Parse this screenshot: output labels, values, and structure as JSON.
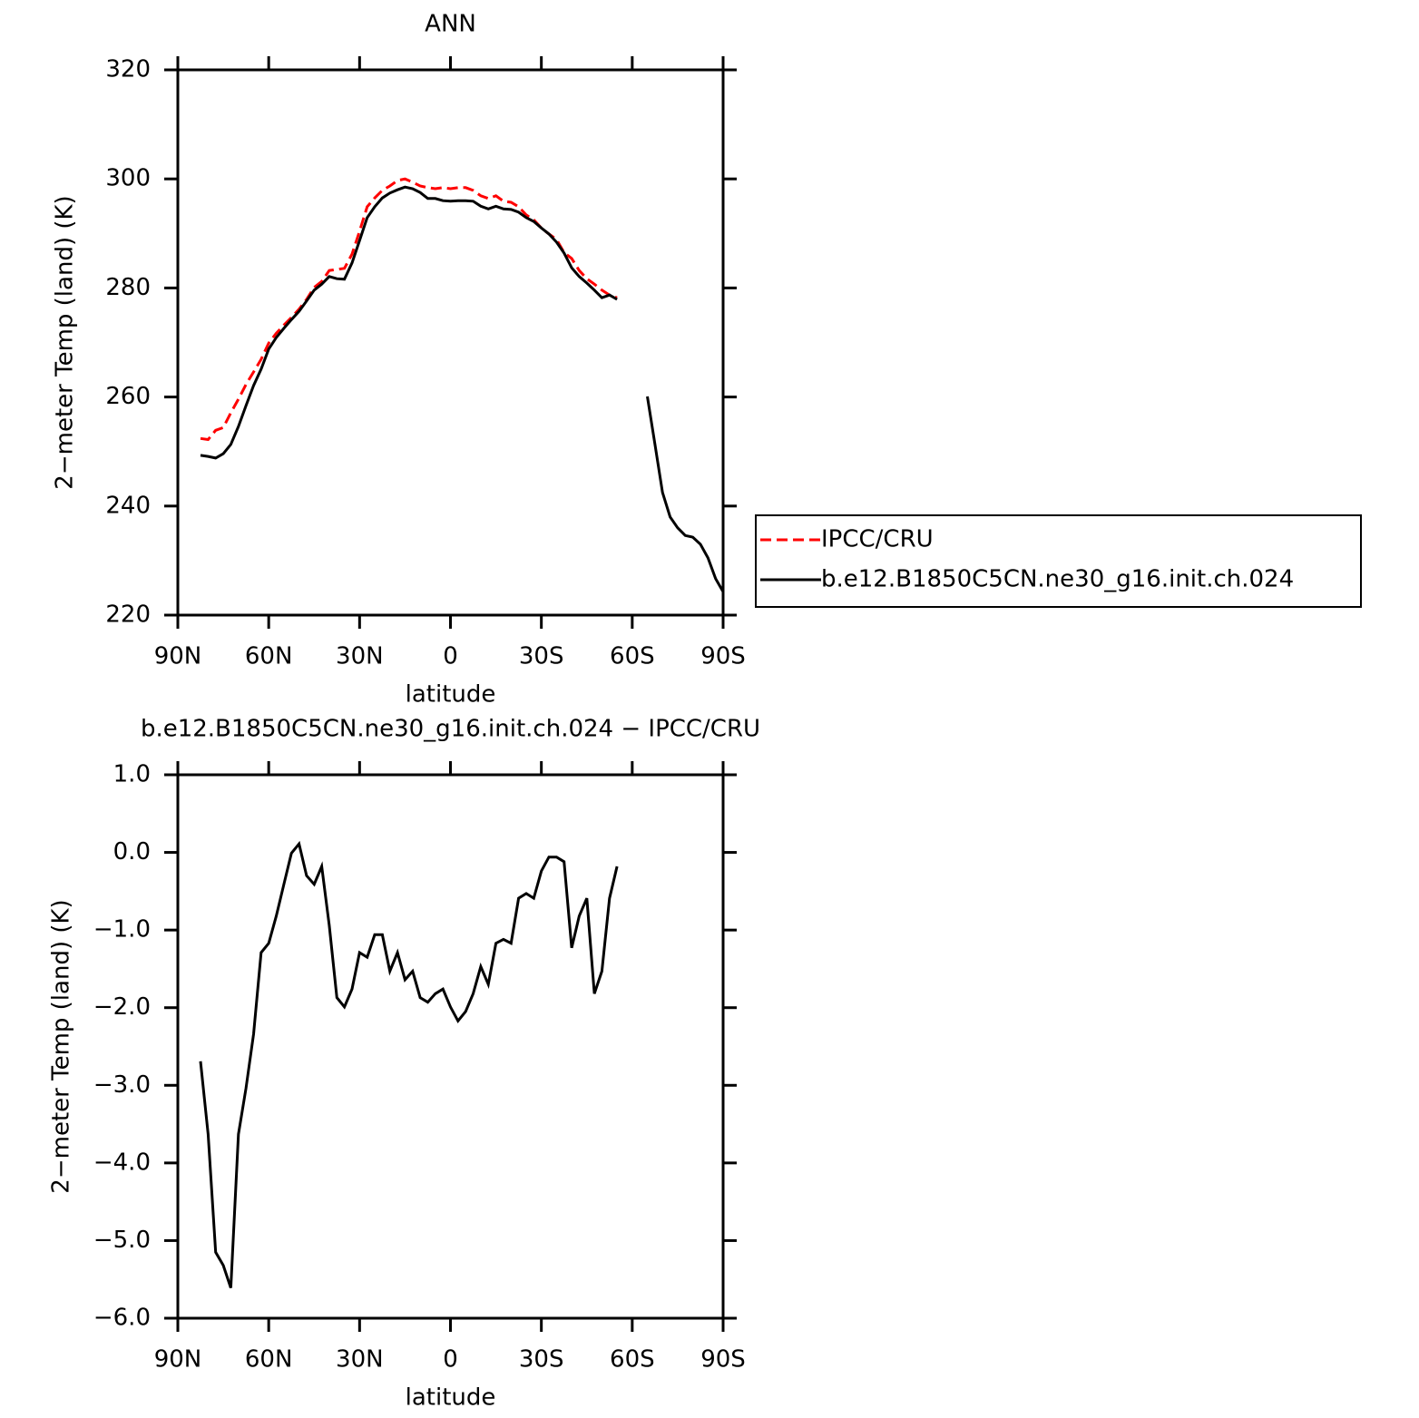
{
  "chart_data": [
    {
      "type": "line",
      "title": "ANN",
      "xlabel": "latitude",
      "ylabel": "2−meter Temp (land) (K)",
      "xlim": [
        90,
        -90
      ],
      "xticks": [
        {
          "value": 90,
          "label": "90N"
        },
        {
          "value": 60,
          "label": "60N"
        },
        {
          "value": 30,
          "label": "30N"
        },
        0,
        {
          "value": -30,
          "label": "30S"
        },
        {
          "value": -60,
          "label": "60S"
        },
        {
          "value": -90,
          "label": "90S"
        }
      ],
      "ylim": [
        220,
        320
      ],
      "yticks": [
        220,
        240,
        260,
        280,
        300,
        320
      ],
      "legend": "right",
      "x": [
        82.5,
        80,
        77.5,
        75,
        72.5,
        70,
        67.5,
        65,
        62.5,
        60,
        57.5,
        55,
        52.5,
        50,
        47.5,
        45,
        42.5,
        40,
        37.5,
        35,
        32.5,
        30,
        27.5,
        25,
        22.5,
        20,
        17.5,
        15,
        12.5,
        10,
        7.5,
        5,
        2.5,
        0,
        -2.5,
        -5,
        -7.5,
        -10,
        -12.5,
        -15,
        -17.5,
        -20,
        -22.5,
        -25,
        -27.5,
        -30,
        -32.5,
        -35,
        -37.5,
        -40,
        -42.5,
        -45,
        -47.5,
        -50,
        -52.5,
        -55,
        -57.5,
        -60,
        -62.5,
        -65,
        -67.5,
        -70,
        -72.5,
        -75,
        -77.5,
        -80,
        -82.5,
        -85,
        -87.5,
        -90
      ],
      "series": [
        {
          "name": "IPCC/CRU",
          "color": "#ff0000",
          "dash": true,
          "values": [
            252.4,
            252.2,
            253.9,
            254.4,
            257.1,
            259.6,
            262.3,
            264.6,
            266.9,
            269.9,
            271.7,
            273.2,
            274.6,
            276.1,
            277.9,
            280.1,
            281.2,
            283.2,
            283.4,
            283.6,
            286.2,
            290.4,
            294.9,
            296.5,
            297.9,
            298.7,
            299.7,
            300.0,
            299.4,
            298.7,
            298.4,
            298.2,
            298.4,
            298.2,
            298.4,
            298.4,
            297.9,
            296.9,
            296.4,
            296.9,
            295.9,
            295.7,
            294.9,
            293.4,
            292.5,
            291.0,
            289.9,
            288.9,
            286.5,
            285.4,
            283.2,
            281.7,
            280.7,
            279.6,
            278.7,
            278.2,
            null,
            null,
            null,
            null,
            null,
            null,
            null,
            null,
            null,
            null,
            null,
            null,
            null,
            null
          ]
        },
        {
          "name": "b.e12.B1850C5CN.ne30_g16.init.ch.024",
          "color": "#000000",
          "dash": false,
          "values": [
            249.3,
            249.1,
            248.8,
            249.6,
            251.3,
            254.6,
            258.4,
            262.1,
            265.1,
            268.8,
            270.9,
            272.6,
            274.2,
            275.7,
            277.6,
            279.6,
            280.7,
            282.1,
            281.7,
            281.6,
            284.6,
            288.7,
            292.9,
            294.9,
            296.5,
            297.4,
            298.0,
            298.5,
            298.2,
            297.5,
            296.4,
            296.4,
            296.0,
            295.9,
            296.0,
            296.0,
            295.9,
            295.0,
            294.5,
            295.0,
            294.5,
            294.4,
            293.9,
            292.9,
            292.2,
            291.0,
            289.9,
            288.4,
            286.4,
            283.7,
            282.1,
            280.9,
            279.6,
            278.2,
            278.7,
            277.9,
            null,
            null,
            null,
            260.1,
            251.3,
            242.5,
            238.0,
            236.0,
            234.6,
            234.3,
            233.0,
            230.5,
            226.7,
            224.3
          ]
        }
      ]
    },
    {
      "type": "line",
      "title": "b.e12.B1850C5CN.ne30_g16.init.ch.024 − IPCC/CRU",
      "xlabel": "latitude",
      "ylabel": "2−meter Temp (land) (K)",
      "xlim": [
        90,
        -90
      ],
      "xticks": [
        {
          "value": 90,
          "label": "90N"
        },
        {
          "value": 60,
          "label": "60N"
        },
        {
          "value": 30,
          "label": "30N"
        },
        0,
        {
          "value": -30,
          "label": "30S"
        },
        {
          "value": -60,
          "label": "60S"
        },
        {
          "value": -90,
          "label": "90S"
        }
      ],
      "ylim": [
        -6,
        1
      ],
      "yticks": [
        {
          "value": -6,
          "label": "−6.0"
        },
        {
          "value": -5,
          "label": "−5.0"
        },
        {
          "value": -4,
          "label": "−4.0"
        },
        {
          "value": -3,
          "label": "−3.0"
        },
        {
          "value": -2,
          "label": "−2.0"
        },
        {
          "value": -1,
          "label": "−1.0"
        },
        {
          "value": 0,
          "label": "0.0"
        },
        {
          "value": 1,
          "label": "1.0"
        }
      ],
      "x": [
        82.5,
        80,
        77.5,
        75,
        72.5,
        70,
        67.5,
        65,
        62.5,
        60,
        57.5,
        55,
        52.5,
        50,
        47.5,
        45,
        42.5,
        40,
        37.5,
        35,
        32.5,
        30,
        27.5,
        25,
        22.5,
        20,
        17.5,
        15,
        12.5,
        10,
        7.5,
        5,
        2.5,
        0,
        -2.5,
        -5,
        -7.5,
        -10,
        -12.5,
        -15,
        -17.5,
        -20,
        -22.5,
        -25,
        -27.5,
        -30,
        -32.5,
        -35,
        -37.5,
        -40,
        -42.5,
        -45,
        -47.5,
        -50,
        -52.5,
        -55
      ],
      "series": [
        {
          "color": "#000000",
          "dash": false,
          "values": [
            -2.69,
            -3.63,
            -5.15,
            -5.32,
            -5.61,
            -3.63,
            -3.04,
            -2.34,
            -1.29,
            -1.17,
            -0.82,
            -0.41,
            -0.01,
            0.11,
            -0.3,
            -0.41,
            -0.18,
            -0.94,
            -1.87,
            -1.99,
            -1.76,
            -1.29,
            -1.35,
            -1.06,
            -1.06,
            -1.53,
            -1.29,
            -1.64,
            -1.53,
            -1.87,
            -1.93,
            -1.82,
            -1.76,
            -1.99,
            -2.17,
            -2.05,
            -1.82,
            -1.47,
            -1.7,
            -1.17,
            -1.12,
            -1.17,
            -0.59,
            -0.53,
            -0.59,
            -0.24,
            -0.06,
            -0.06,
            -0.12,
            -1.23,
            -0.82,
            -0.59,
            -1.82,
            -1.53,
            -0.59,
            -0.18
          ]
        }
      ]
    }
  ]
}
